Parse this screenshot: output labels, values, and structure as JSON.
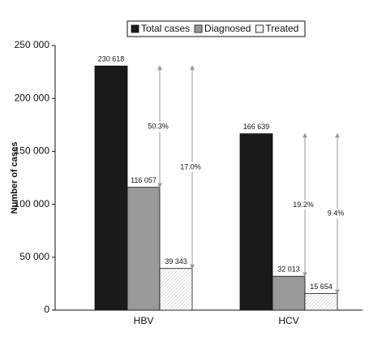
{
  "chart_data": {
    "type": "bar",
    "ylabel": "Number of cases",
    "categories": [
      "HBV",
      "HCV"
    ],
    "series": [
      {
        "name": "Total cases",
        "color": "#1a1a1a",
        "values": [
          230618,
          166639
        ],
        "value_labels": [
          "230 618",
          "166 639"
        ]
      },
      {
        "name": "Diagnosed",
        "color": "#999999",
        "values": [
          116057,
          32013
        ],
        "value_labels": [
          "116 057",
          "32 013"
        ]
      },
      {
        "name": "Treated",
        "color": "#ffffff",
        "hatch": true,
        "values": [
          39343,
          15654
        ],
        "value_labels": [
          "39 343",
          "15 654"
        ]
      }
    ],
    "annotations": [
      {
        "text": "50.3%"
      },
      {
        "text": "17.0%"
      },
      {
        "text": "19.2%"
      },
      {
        "text": "9.4%"
      }
    ],
    "ylim": [
      0,
      250000
    ],
    "yticks": [
      0,
      {
        "value": 50000,
        "label": "50 000"
      },
      {
        "value": 100000,
        "label": "100 000"
      },
      {
        "value": 150000,
        "label": "150 000"
      },
      {
        "value": 200000,
        "label": "200 000"
      },
      {
        "value": 250000,
        "label": "250 000"
      }
    ],
    "grid": false,
    "legend": "top"
  }
}
